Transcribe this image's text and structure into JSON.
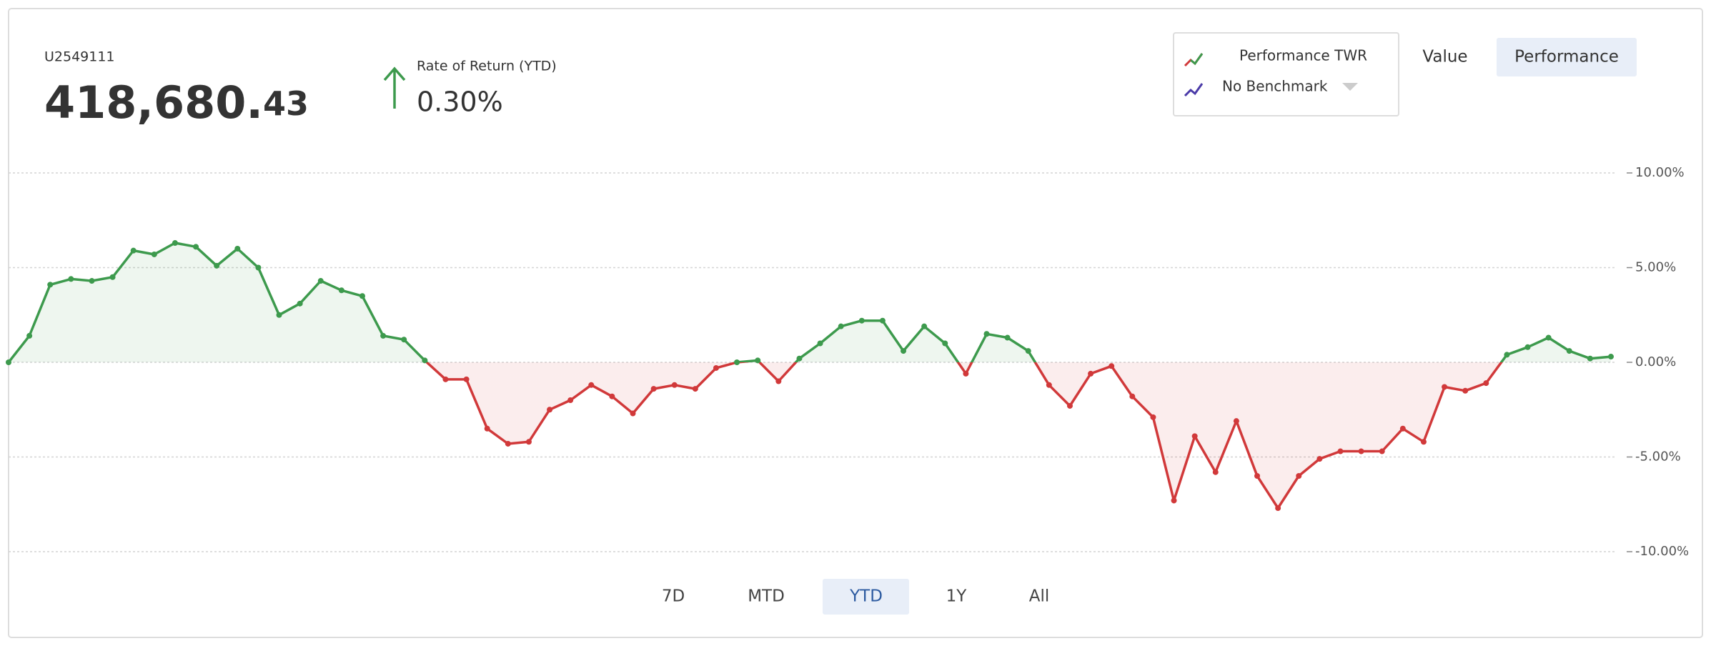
{
  "account": {
    "id": "U2549111",
    "value_main": "418,680.",
    "value_cents": "43"
  },
  "return": {
    "label": "Rate of Return (YTD)",
    "value": "0.30%"
  },
  "legend": {
    "items": [
      "Performance TWR",
      "No Benchmark"
    ]
  },
  "view_toggle": [
    "Value",
    "Performance"
  ],
  "ranges": [
    "7D",
    "MTD",
    "YTD",
    "1Y",
    "All"
  ],
  "chart_data": {
    "type": "area",
    "values": [
      0,
      1.4,
      4.1,
      4.4,
      4.3,
      4.5,
      5.9,
      5.7,
      6.3,
      6.1,
      5.1,
      6.0,
      5.0,
      2.5,
      3.1,
      4.3,
      3.8,
      3.5,
      1.4,
      1.2,
      0.1,
      -0.9,
      -0.9,
      -3.5,
      -4.3,
      -4.2,
      -2.5,
      -2.0,
      -1.2,
      -1.8,
      -2.7,
      -1.4,
      -1.2,
      -1.4,
      -0.3,
      0.0,
      0.1,
      -1.0,
      0.2,
      1.0,
      1.9,
      2.2,
      2.2,
      0.6,
      1.9,
      1.0,
      -0.6,
      1.5,
      1.3,
      0.6,
      -1.2,
      -2.3,
      -0.6,
      -0.2,
      -1.8,
      -2.9,
      -7.3,
      -3.9,
      -5.8,
      -3.1,
      -6.0,
      -7.7,
      -6.0,
      -5.1,
      -4.7,
      -4.7,
      -4.7,
      -3.5,
      -4.2,
      -1.3,
      -1.5,
      -1.1,
      0.4,
      0.8,
      1.3,
      0.6,
      0.2,
      0.3
    ],
    "ylim": [
      -10,
      10
    ],
    "yticks": [
      {
        "value": 10,
        "label": "10.00%"
      },
      {
        "value": 5,
        "label": "5.00%"
      },
      {
        "value": 0,
        "label": "0.00%"
      },
      {
        "value": -5,
        "label": "-5.00%"
      },
      {
        "value": -10,
        "label": "-10.00%"
      }
    ],
    "grid": true,
    "positive_color": "#3d9a4d",
    "negative_color": "#d1393a"
  }
}
